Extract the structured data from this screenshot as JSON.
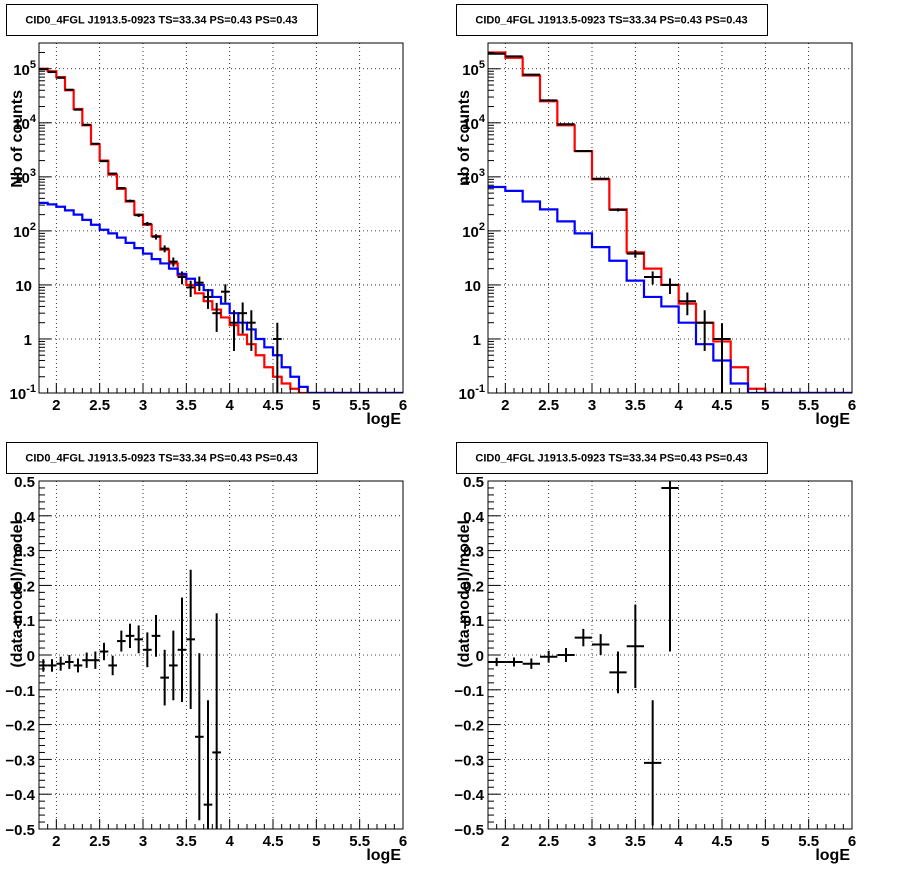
{
  "chart_data": [
    {
      "type": "histogram",
      "title": "CID0_4FGL J1913.5-0923 TS=33.34 PS=0.43 PS=0.43",
      "xlabel": "logE",
      "ylabel": "Nb of counts",
      "xlim": [
        1.8,
        6.0
      ],
      "ylim": [
        0.1,
        300000
      ],
      "yscale": "log",
      "grid": true,
      "x_ticks": [
        "2",
        "2.5",
        "3",
        "3.5",
        "4",
        "4.5",
        "5",
        "5.5",
        "6"
      ],
      "y_ticks": [
        {
          "base": "10",
          "exp": "-1"
        },
        {
          "base": "1",
          "exp": ""
        },
        {
          "base": "10",
          "exp": ""
        },
        {
          "base": "10",
          "exp": "2"
        },
        {
          "base": "10",
          "exp": "3"
        },
        {
          "base": "10",
          "exp": "4"
        },
        {
          "base": "10",
          "exp": "5"
        }
      ],
      "series": [
        {
          "color": "#ff0000",
          "binwidth": 0.1,
          "x": [
            1.8,
            1.9,
            2.0,
            2.1,
            2.2,
            2.3,
            2.4,
            2.5,
            2.6,
            2.7,
            2.8,
            2.9,
            3.0,
            3.1,
            3.2,
            3.3,
            3.4,
            3.5,
            3.6,
            3.7,
            3.8,
            3.9,
            4.0,
            4.1,
            4.2,
            4.3,
            4.4,
            4.5,
            4.6,
            4.7,
            4.8,
            4.9,
            5.0,
            5.1,
            5.2,
            5.3,
            5.4,
            5.5,
            5.6,
            5.7,
            5.8,
            5.9
          ],
          "values": [
            100000,
            90000,
            70000,
            40000,
            18000,
            9000,
            4000,
            2000,
            1100,
            600,
            350,
            200,
            130,
            80,
            45,
            25,
            15,
            10,
            7,
            5,
            3.5,
            2.5,
            1.8,
            1.2,
            0.8,
            0.5,
            0.3,
            0.2,
            0.15,
            0.12,
            0.1,
            0.1,
            0.1,
            0.1,
            0.1,
            0.1,
            0.1,
            0.1,
            0.1,
            0.1,
            0.1,
            0.1
          ]
        },
        {
          "color": "#0000ff",
          "binwidth": 0.1,
          "x": [
            1.8,
            1.9,
            2.0,
            2.1,
            2.2,
            2.3,
            2.4,
            2.5,
            2.6,
            2.7,
            2.8,
            2.9,
            3.0,
            3.1,
            3.2,
            3.3,
            3.4,
            3.5,
            3.6,
            3.7,
            3.8,
            3.9,
            4.0,
            4.1,
            4.2,
            4.3,
            4.4,
            4.5,
            4.6,
            4.7,
            4.8,
            4.9,
            5.0,
            5.1,
            5.2,
            5.3,
            5.4,
            5.5,
            5.6,
            5.7,
            5.8,
            5.9
          ],
          "values": [
            330,
            310,
            280,
            240,
            200,
            160,
            130,
            105,
            90,
            75,
            60,
            48,
            38,
            30,
            25,
            20,
            16,
            13,
            10,
            8,
            6,
            4.5,
            3,
            2,
            1.5,
            1,
            0.7,
            0.5,
            0.3,
            0.2,
            0.13,
            0.1,
            0.1,
            0.1,
            0.1,
            0.1,
            0.1,
            0.1,
            0.1,
            0.1,
            0.1,
            0.1
          ]
        },
        {
          "color": "#000000",
          "type": "points",
          "x": [
            1.85,
            1.95,
            2.05,
            2.15,
            2.25,
            2.35,
            2.45,
            2.55,
            2.65,
            2.75,
            2.85,
            2.95,
            3.05,
            3.15,
            3.25,
            3.35,
            3.45,
            3.55,
            3.65,
            3.75,
            3.85,
            3.95,
            4.05,
            4.15,
            4.25,
            4.55
          ],
          "y": [
            98000,
            87000,
            68000,
            41000,
            17500,
            9200,
            4100,
            1950,
            1150,
            620,
            360,
            195,
            135,
            78,
            47,
            27,
            14,
            9,
            11,
            6,
            3,
            7.5,
            2,
            3,
            2,
            1
          ],
          "xerr": 0.05,
          "yerr_rel": [
            0.003,
            0.003,
            0.004,
            0.005,
            0.008,
            0.01,
            0.016,
            0.023,
            0.03,
            0.04,
            0.053,
            0.072,
            0.086,
            0.113,
            0.146,
            0.192,
            0.267,
            0.333,
            0.3,
            0.4,
            0.55,
            0.37,
            0.7,
            0.58,
            0.7,
            1.0
          ]
        }
      ]
    },
    {
      "type": "histogram",
      "title": "CID0_4FGL J1913.5-0923 TS=33.34 PS=0.43 PS=0.43",
      "xlabel": "logE",
      "ylabel": "nb of counts",
      "xlim": [
        1.8,
        6.0
      ],
      "ylim": [
        0.1,
        300000
      ],
      "yscale": "log",
      "grid": true,
      "x_ticks": [
        "2",
        "2.5",
        "3",
        "3.5",
        "4",
        "4.5",
        "5",
        "5.5",
        "6"
      ],
      "y_ticks": [
        {
          "base": "10",
          "exp": "-1"
        },
        {
          "base": "1",
          "exp": ""
        },
        {
          "base": "10",
          "exp": ""
        },
        {
          "base": "10",
          "exp": "2"
        },
        {
          "base": "10",
          "exp": "3"
        },
        {
          "base": "10",
          "exp": "4"
        },
        {
          "base": "10",
          "exp": "5"
        }
      ],
      "series": [
        {
          "color": "#ff0000",
          "binwidth": 0.2,
          "x": [
            1.8,
            2.0,
            2.2,
            2.4,
            2.6,
            2.8,
            3.0,
            3.2,
            3.4,
            3.6,
            3.8,
            4.0,
            4.2,
            4.4,
            4.6,
            4.8,
            5.0,
            5.2,
            5.4,
            5.6,
            5.8
          ],
          "values": [
            200000,
            160000,
            75000,
            25000,
            9000,
            3000,
            900,
            250,
            40,
            20,
            10,
            4.5,
            2,
            0.9,
            0.3,
            0.12,
            0.1,
            0.1,
            0.1,
            0.1,
            0.1
          ]
        },
        {
          "color": "#0000ff",
          "binwidth": 0.2,
          "x": [
            1.8,
            2.0,
            2.2,
            2.4,
            2.6,
            2.8,
            3.0,
            3.2,
            3.4,
            3.6,
            3.8,
            4.0,
            4.2,
            4.4,
            4.6,
            4.8,
            5.0,
            5.2,
            5.4,
            5.6,
            5.8
          ],
          "values": [
            650,
            550,
            350,
            250,
            150,
            90,
            50,
            28,
            12,
            6,
            4,
            2,
            0.8,
            0.4,
            0.15,
            0.1,
            0.1,
            0.1,
            0.1,
            0.1,
            0.1
          ]
        },
        {
          "color": "#000000",
          "type": "points",
          "x": [
            1.9,
            2.1,
            2.3,
            2.5,
            2.7,
            2.9,
            3.1,
            3.3,
            3.5,
            3.7,
            3.9,
            4.1,
            4.3,
            4.5
          ],
          "y": [
            190000,
            170000,
            78000,
            26000,
            9400,
            3000,
            920,
            245,
            38,
            14,
            10,
            5,
            2,
            1
          ],
          "xerr": 0.1,
          "yerr_rel": [
            0.003,
            0.003,
            0.004,
            0.006,
            0.01,
            0.018,
            0.033,
            0.064,
            0.16,
            0.27,
            0.32,
            0.45,
            0.7,
            0.95
          ]
        }
      ]
    },
    {
      "type": "scatter",
      "title": "CID0_4FGL J1913.5-0923 TS=33.34 PS=0.43 PS=0.43",
      "xlabel": "logE",
      "ylabel": "(data-model)/model",
      "xlim": [
        1.8,
        6.0
      ],
      "ylim": [
        -0.5,
        0.5
      ],
      "grid": true,
      "x_ticks": [
        "2",
        "2.5",
        "3",
        "3.5",
        "4",
        "4.5",
        "5",
        "5.5",
        "6"
      ],
      "y_ticks": [
        "−0.5",
        "−0.4",
        "−0.3",
        "−0.2",
        "−0.1",
        "0",
        "0.1",
        "0.2",
        "0.3",
        "0.4",
        "0.5"
      ],
      "points": {
        "x": [
          1.85,
          1.95,
          2.05,
          2.15,
          2.25,
          2.35,
          2.45,
          2.55,
          2.65,
          2.75,
          2.85,
          2.95,
          3.05,
          3.15,
          3.25,
          3.35,
          3.45,
          3.55,
          3.65,
          3.75,
          3.85
        ],
        "y": [
          -0.03,
          -0.03,
          -0.025,
          -0.02,
          -0.03,
          -0.015,
          -0.015,
          0.01,
          -0.03,
          0.04,
          0.055,
          0.045,
          0.015,
          0.055,
          -0.065,
          -0.03,
          0.015,
          0.045,
          -0.235,
          -0.43,
          -0.28
        ],
        "yerr": [
          0.018,
          0.018,
          0.02,
          0.02,
          0.02,
          0.022,
          0.025,
          0.025,
          0.028,
          0.03,
          0.035,
          0.04,
          0.05,
          0.06,
          0.08,
          0.1,
          0.15,
          0.2,
          0.24,
          0.3,
          0.4
        ],
        "xerr": 0.05
      }
    },
    {
      "type": "scatter",
      "title": "CID0_4FGL J1913.5-0923 TS=33.34 PS=0.43 PS=0.43",
      "xlabel": "logE",
      "ylabel": "(data-model)/model",
      "xlim": [
        1.8,
        6.0
      ],
      "ylim": [
        -0.5,
        0.5
      ],
      "grid": true,
      "x_ticks": [
        "2",
        "2.5",
        "3",
        "3.5",
        "4",
        "4.5",
        "5",
        "5.5",
        "6"
      ],
      "y_ticks": [
        "−0.5",
        "−0.4",
        "−0.3",
        "−0.2",
        "−0.1",
        "0",
        "0.1",
        "0.2",
        "0.3",
        "0.4",
        "0.5"
      ],
      "points": {
        "x": [
          1.9,
          2.1,
          2.3,
          2.5,
          2.7,
          2.9,
          3.1,
          3.3,
          3.5,
          3.7,
          3.9
        ],
        "y": [
          -0.02,
          -0.02,
          -0.025,
          -0.005,
          0.0,
          0.05,
          0.03,
          -0.05,
          0.025,
          -0.31,
          0.48
        ],
        "yerr": [
          0.012,
          0.013,
          0.015,
          0.017,
          0.02,
          0.025,
          0.03,
          0.06,
          0.12,
          0.18,
          0.47
        ],
        "xerr": 0.1
      }
    }
  ]
}
